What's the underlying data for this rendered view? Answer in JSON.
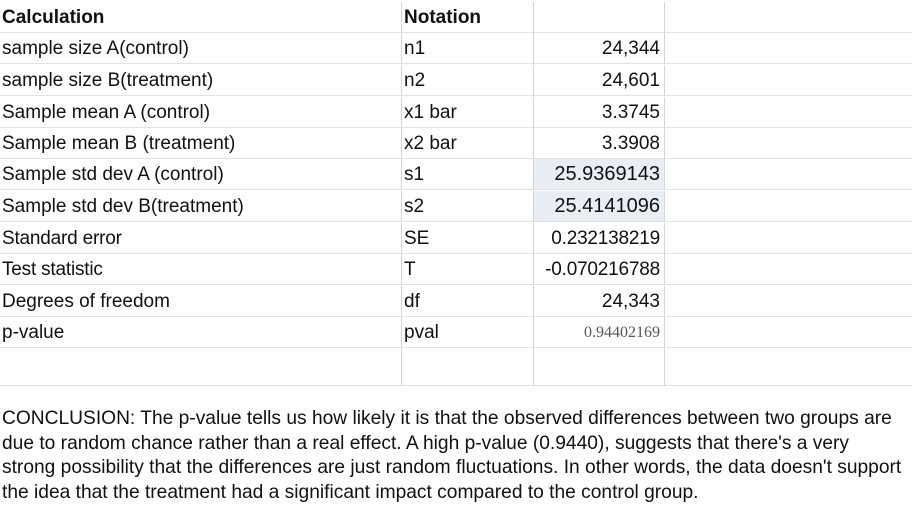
{
  "header": {
    "calculation": "Calculation",
    "notation": "Notation"
  },
  "rows": [
    {
      "calculation": "sample size A(control)",
      "notation": "n1",
      "value": "24,344"
    },
    {
      "calculation": "sample size B(treatment)",
      "notation": "n2",
      "value": "24,601"
    },
    {
      "calculation": "Sample mean A (control)",
      "notation": "x1 bar",
      "value": "3.3745"
    },
    {
      "calculation": "Sample mean B (treatment)",
      "notation": "x2 bar",
      "value": "3.3908"
    },
    {
      "calculation": "Sample std dev A (control)",
      "notation": "s1",
      "value": "25.9369143"
    },
    {
      "calculation": "Sample std dev B(treatment)",
      "notation": "s2",
      "value": "25.4141096"
    },
    {
      "calculation": "Standard error",
      "notation": "SE",
      "value": "0.232138219"
    },
    {
      "calculation": "Test statistic",
      "notation": "T",
      "value": "-0.070216788"
    },
    {
      "calculation": "Degrees of freedom",
      "notation": "df",
      "value": "24,343"
    },
    {
      "calculation": "p-value",
      "notation": "pval",
      "value": "0.94402169"
    }
  ],
  "conclusion": "CONCLUSION: The p-value tells us how likely it is that the observed differences between two groups are due to random chance rather than a real effect. A high p-value (0.9440), suggests that there's a very strong possibility that the differences are just random fluctuations. In other words, the data doesn't support the idea that the treatment had a significant impact compared to the control group.",
  "colors": {
    "highlight": "#e9edf5",
    "gridline": "#d4d4d4"
  }
}
